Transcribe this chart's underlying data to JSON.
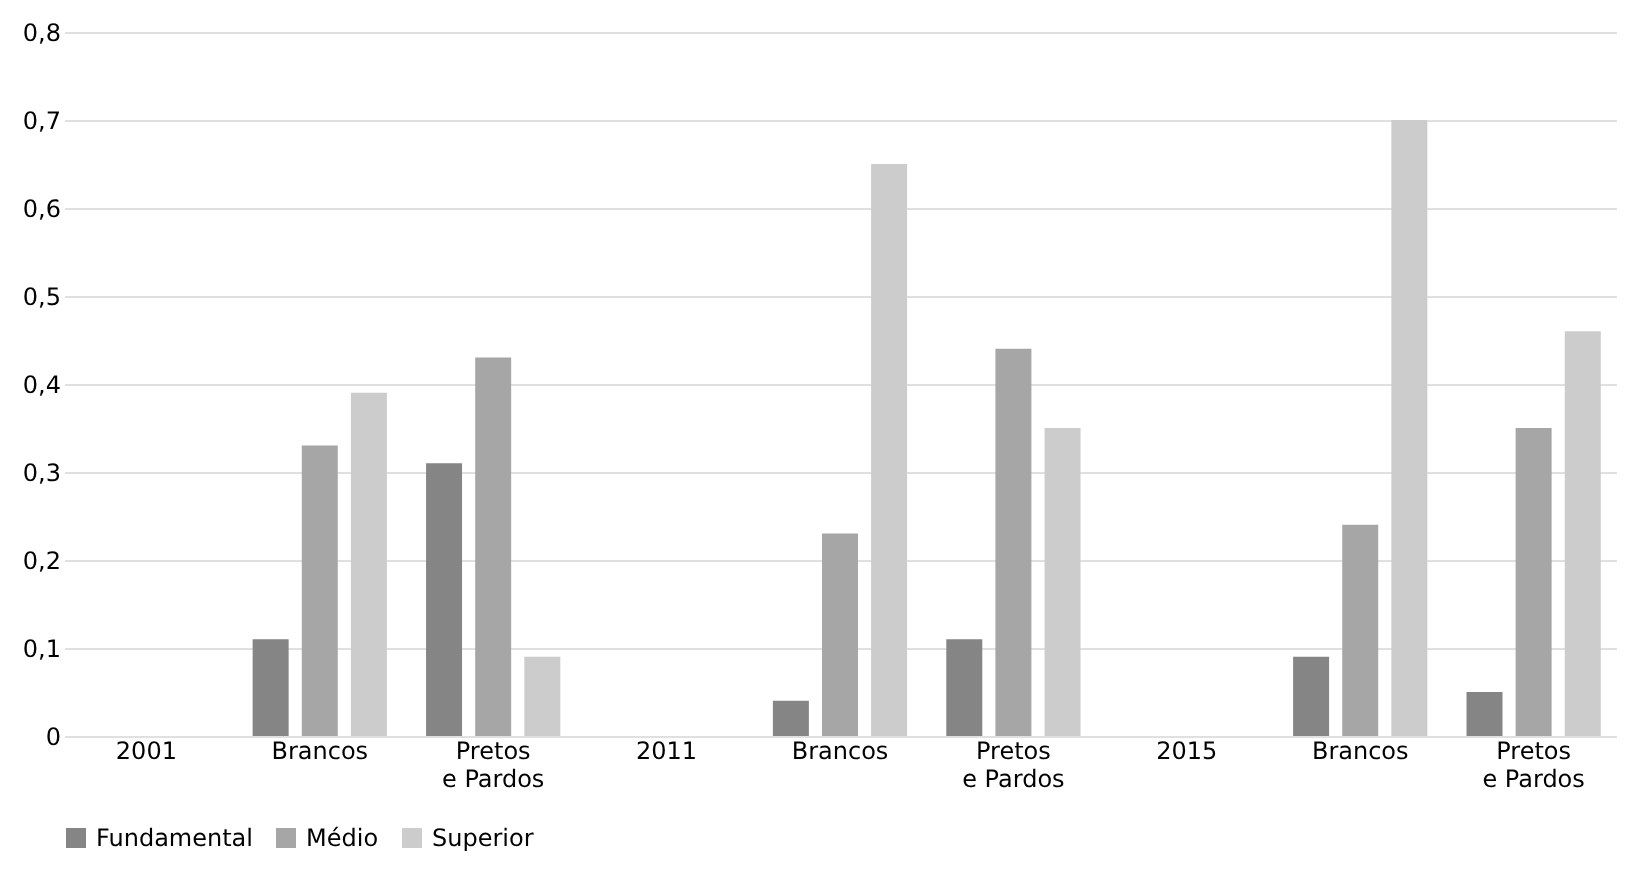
{
  "chart_data": {
    "type": "bar",
    "categories": [
      "2001",
      "Brancos",
      "Pretos\ne Pardos",
      "2011",
      "Brancos",
      "Pretos\ne Pardos",
      "2015",
      "Brancos",
      "Pretos\ne Pardos"
    ],
    "series": [
      {
        "name": "Fundamental",
        "color": "#858585",
        "values": [
          null,
          0.11,
          0.31,
          null,
          0.04,
          0.11,
          null,
          0.09,
          0.05
        ]
      },
      {
        "name": "Médio",
        "color": "#a6a6a6",
        "values": [
          null,
          0.33,
          0.43,
          null,
          0.23,
          0.44,
          null,
          0.24,
          0.35
        ]
      },
      {
        "name": "Superior",
        "color": "#cccccc",
        "values": [
          null,
          0.39,
          0.09,
          null,
          0.65,
          0.35,
          null,
          0.7,
          0.46
        ]
      }
    ],
    "ylim": [
      0,
      0.8
    ],
    "yticks": [
      0,
      {
        "value": 0.1,
        "label": "0,1"
      },
      {
        "value": 0.2,
        "label": "0,2"
      },
      {
        "value": 0.3,
        "label": "0,3"
      },
      {
        "value": 0.4,
        "label": "0,4"
      },
      {
        "value": 0.5,
        "label": "0,5"
      },
      {
        "value": 0.6,
        "label": "0,6"
      },
      {
        "value": 0.7,
        "label": "0,7"
      },
      {
        "value": 0.8,
        "label": "0,8"
      }
    ],
    "grid": "y",
    "legend": "bottom"
  }
}
